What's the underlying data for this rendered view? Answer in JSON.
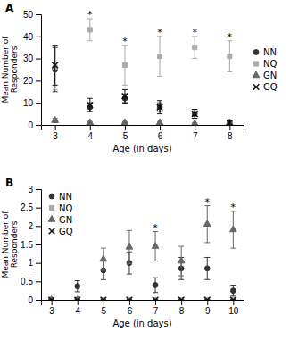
{
  "chart_data": [
    {
      "type": "scatter",
      "title": "A",
      "x": [
        3,
        4,
        5,
        6,
        7,
        8
      ],
      "xlim": [
        2.6,
        8.4
      ],
      "xticks": [
        3,
        4,
        5,
        6,
        7,
        8
      ],
      "ylim": [
        0,
        50
      ],
      "yticks": [
        0,
        10,
        20,
        30,
        40,
        50
      ],
      "xlabel": "Age (in days)",
      "ylabel": "Mean Number of\nResponders",
      "grid": false,
      "legend": "right",
      "series": [
        {
          "name": "NN",
          "color": "#333333",
          "marker": "circle",
          "values": [
            25,
            8,
            12,
            8,
            5,
            1
          ],
          "errors": [
            10,
            2,
            2,
            2,
            2,
            1
          ]
        },
        {
          "name": "NQ",
          "color": "#aaaaaa",
          "marker": "square",
          "values": [
            26,
            43,
            27,
            31,
            35,
            31
          ],
          "errors": [
            10,
            5,
            9,
            9,
            5,
            7
          ]
        },
        {
          "name": "GN",
          "color": "#666666",
          "marker": "triangle",
          "values": [
            2,
            1,
            1,
            1,
            0.5,
            1
          ],
          "errors": [
            1,
            0.5,
            0.5,
            0.5,
            0.5,
            0.5
          ]
        },
        {
          "name": "GQ",
          "color": "#111111",
          "marker": "x",
          "values": [
            27,
            9,
            13,
            8,
            5,
            1
          ],
          "errors": [
            9,
            3,
            3,
            3,
            2,
            1
          ]
        }
      ],
      "annotations": [
        {
          "text": "*",
          "x": 4,
          "y": 48
        },
        {
          "text": "*",
          "x": 5,
          "y": 36
        },
        {
          "text": "*",
          "x": 6,
          "y": 40
        },
        {
          "text": "*",
          "x": 7,
          "y": 40
        },
        {
          "text": "*",
          "x": 8,
          "y": 38
        }
      ]
    },
    {
      "type": "scatter",
      "title": "B",
      "x": [
        3,
        4,
        5,
        6,
        7,
        8,
        9,
        10
      ],
      "xlim": [
        2.6,
        10.4
      ],
      "xticks": [
        3,
        4,
        5,
        6,
        7,
        8,
        9,
        10
      ],
      "ylim": [
        0,
        3
      ],
      "yticks": [
        0,
        0.5,
        1,
        1.5,
        2,
        2.5,
        3
      ],
      "xlabel": "Age (in days)",
      "ylabel": "Mean Number of\nResponders",
      "grid": false,
      "legend": "upper left",
      "series": [
        {
          "name": "NN",
          "color": "#333333",
          "marker": "circle",
          "values": [
            0,
            0.37,
            0.8,
            1.0,
            0.4,
            0.85,
            0.85,
            0.25
          ],
          "errors": [
            0.05,
            0.15,
            0.25,
            0.3,
            0.2,
            0.3,
            0.3,
            0.15
          ]
        },
        {
          "name": "NQ",
          "color": "#aaaaaa",
          "marker": "square",
          "values": [
            0,
            0.0,
            0.0,
            0.0,
            0.0,
            0.0,
            0.0,
            0.0
          ],
          "errors": [
            0.0,
            0.0,
            0.0,
            0.0,
            0.0,
            0.0,
            0.0,
            0.0
          ]
        },
        {
          "name": "GN",
          "color": "#666666",
          "marker": "triangle",
          "values": [
            0,
            0,
            1.1,
            1.43,
            1.45,
            1.05,
            2.05,
            1.9
          ],
          "errors": [
            0.05,
            0.05,
            0.3,
            0.45,
            0.4,
            0.4,
            0.5,
            0.5
          ]
        },
        {
          "name": "GQ",
          "color": "#111111",
          "marker": "x",
          "values": [
            0,
            0,
            0,
            0,
            0,
            0,
            0,
            0
          ],
          "errors": [
            0,
            0,
            0,
            0,
            0,
            0,
            0,
            0
          ]
        }
      ],
      "annotations": [
        {
          "text": "*",
          "x": 7,
          "y": 1.85
        },
        {
          "text": "*",
          "x": 9,
          "y": 2.55
        },
        {
          "text": "*",
          "x": 10,
          "y": 2.4
        }
      ]
    }
  ]
}
